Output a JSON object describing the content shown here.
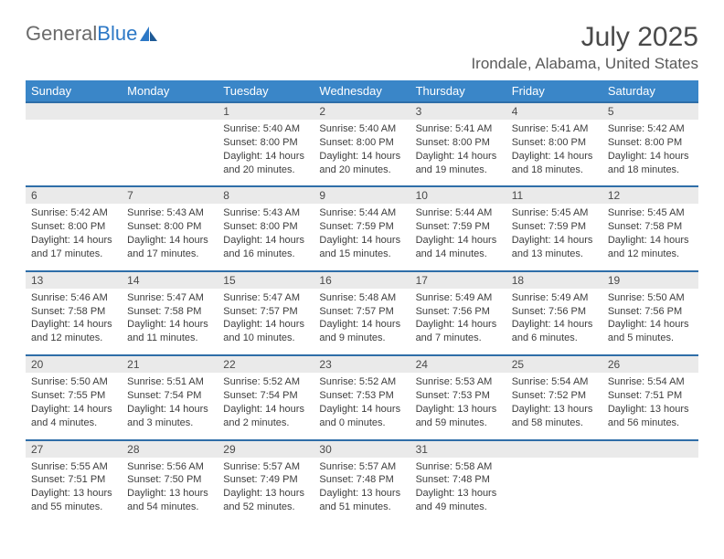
{
  "logo": {
    "part1": "General",
    "part2": "Blue"
  },
  "title": "July 2025",
  "location": "Irondale, Alabama, United States",
  "colors": {
    "header_bg": "#3a86c8",
    "header_text": "#ffffff",
    "num_row_bg": "#eaeaea",
    "num_row_border": "#2f6ea8",
    "body_text": "#3d3d3d",
    "title_text": "#4a4a4a",
    "logo_gray": "#6b6b6b",
    "logo_blue": "#2d78c6"
  },
  "fonts": {
    "title_pt": 30,
    "location_pt": 17,
    "dayhead_pt": 13,
    "daynum_pt": 12,
    "cell_pt": 11
  },
  "day_headers": [
    "Sunday",
    "Monday",
    "Tuesday",
    "Wednesday",
    "Thursday",
    "Friday",
    "Saturday"
  ],
  "weeks": [
    {
      "nums": [
        "",
        "",
        "1",
        "2",
        "3",
        "4",
        "5"
      ],
      "cells": [
        null,
        null,
        {
          "sunrise": "Sunrise: 5:40 AM",
          "sunset": "Sunset: 8:00 PM",
          "day1": "Daylight: 14 hours",
          "day2": "and 20 minutes."
        },
        {
          "sunrise": "Sunrise: 5:40 AM",
          "sunset": "Sunset: 8:00 PM",
          "day1": "Daylight: 14 hours",
          "day2": "and 20 minutes."
        },
        {
          "sunrise": "Sunrise: 5:41 AM",
          "sunset": "Sunset: 8:00 PM",
          "day1": "Daylight: 14 hours",
          "day2": "and 19 minutes."
        },
        {
          "sunrise": "Sunrise: 5:41 AM",
          "sunset": "Sunset: 8:00 PM",
          "day1": "Daylight: 14 hours",
          "day2": "and 18 minutes."
        },
        {
          "sunrise": "Sunrise: 5:42 AM",
          "sunset": "Sunset: 8:00 PM",
          "day1": "Daylight: 14 hours",
          "day2": "and 18 minutes."
        }
      ]
    },
    {
      "nums": [
        "6",
        "7",
        "8",
        "9",
        "10",
        "11",
        "12"
      ],
      "cells": [
        {
          "sunrise": "Sunrise: 5:42 AM",
          "sunset": "Sunset: 8:00 PM",
          "day1": "Daylight: 14 hours",
          "day2": "and 17 minutes."
        },
        {
          "sunrise": "Sunrise: 5:43 AM",
          "sunset": "Sunset: 8:00 PM",
          "day1": "Daylight: 14 hours",
          "day2": "and 17 minutes."
        },
        {
          "sunrise": "Sunrise: 5:43 AM",
          "sunset": "Sunset: 8:00 PM",
          "day1": "Daylight: 14 hours",
          "day2": "and 16 minutes."
        },
        {
          "sunrise": "Sunrise: 5:44 AM",
          "sunset": "Sunset: 7:59 PM",
          "day1": "Daylight: 14 hours",
          "day2": "and 15 minutes."
        },
        {
          "sunrise": "Sunrise: 5:44 AM",
          "sunset": "Sunset: 7:59 PM",
          "day1": "Daylight: 14 hours",
          "day2": "and 14 minutes."
        },
        {
          "sunrise": "Sunrise: 5:45 AM",
          "sunset": "Sunset: 7:59 PM",
          "day1": "Daylight: 14 hours",
          "day2": "and 13 minutes."
        },
        {
          "sunrise": "Sunrise: 5:45 AM",
          "sunset": "Sunset: 7:58 PM",
          "day1": "Daylight: 14 hours",
          "day2": "and 12 minutes."
        }
      ]
    },
    {
      "nums": [
        "13",
        "14",
        "15",
        "16",
        "17",
        "18",
        "19"
      ],
      "cells": [
        {
          "sunrise": "Sunrise: 5:46 AM",
          "sunset": "Sunset: 7:58 PM",
          "day1": "Daylight: 14 hours",
          "day2": "and 12 minutes."
        },
        {
          "sunrise": "Sunrise: 5:47 AM",
          "sunset": "Sunset: 7:58 PM",
          "day1": "Daylight: 14 hours",
          "day2": "and 11 minutes."
        },
        {
          "sunrise": "Sunrise: 5:47 AM",
          "sunset": "Sunset: 7:57 PM",
          "day1": "Daylight: 14 hours",
          "day2": "and 10 minutes."
        },
        {
          "sunrise": "Sunrise: 5:48 AM",
          "sunset": "Sunset: 7:57 PM",
          "day1": "Daylight: 14 hours",
          "day2": "and 9 minutes."
        },
        {
          "sunrise": "Sunrise: 5:49 AM",
          "sunset": "Sunset: 7:56 PM",
          "day1": "Daylight: 14 hours",
          "day2": "and 7 minutes."
        },
        {
          "sunrise": "Sunrise: 5:49 AM",
          "sunset": "Sunset: 7:56 PM",
          "day1": "Daylight: 14 hours",
          "day2": "and 6 minutes."
        },
        {
          "sunrise": "Sunrise: 5:50 AM",
          "sunset": "Sunset: 7:56 PM",
          "day1": "Daylight: 14 hours",
          "day2": "and 5 minutes."
        }
      ]
    },
    {
      "nums": [
        "20",
        "21",
        "22",
        "23",
        "24",
        "25",
        "26"
      ],
      "cells": [
        {
          "sunrise": "Sunrise: 5:50 AM",
          "sunset": "Sunset: 7:55 PM",
          "day1": "Daylight: 14 hours",
          "day2": "and 4 minutes."
        },
        {
          "sunrise": "Sunrise: 5:51 AM",
          "sunset": "Sunset: 7:54 PM",
          "day1": "Daylight: 14 hours",
          "day2": "and 3 minutes."
        },
        {
          "sunrise": "Sunrise: 5:52 AM",
          "sunset": "Sunset: 7:54 PM",
          "day1": "Daylight: 14 hours",
          "day2": "and 2 minutes."
        },
        {
          "sunrise": "Sunrise: 5:52 AM",
          "sunset": "Sunset: 7:53 PM",
          "day1": "Daylight: 14 hours",
          "day2": "and 0 minutes."
        },
        {
          "sunrise": "Sunrise: 5:53 AM",
          "sunset": "Sunset: 7:53 PM",
          "day1": "Daylight: 13 hours",
          "day2": "and 59 minutes."
        },
        {
          "sunrise": "Sunrise: 5:54 AM",
          "sunset": "Sunset: 7:52 PM",
          "day1": "Daylight: 13 hours",
          "day2": "and 58 minutes."
        },
        {
          "sunrise": "Sunrise: 5:54 AM",
          "sunset": "Sunset: 7:51 PM",
          "day1": "Daylight: 13 hours",
          "day2": "and 56 minutes."
        }
      ]
    },
    {
      "nums": [
        "27",
        "28",
        "29",
        "30",
        "31",
        "",
        ""
      ],
      "cells": [
        {
          "sunrise": "Sunrise: 5:55 AM",
          "sunset": "Sunset: 7:51 PM",
          "day1": "Daylight: 13 hours",
          "day2": "and 55 minutes."
        },
        {
          "sunrise": "Sunrise: 5:56 AM",
          "sunset": "Sunset: 7:50 PM",
          "day1": "Daylight: 13 hours",
          "day2": "and 54 minutes."
        },
        {
          "sunrise": "Sunrise: 5:57 AM",
          "sunset": "Sunset: 7:49 PM",
          "day1": "Daylight: 13 hours",
          "day2": "and 52 minutes."
        },
        {
          "sunrise": "Sunrise: 5:57 AM",
          "sunset": "Sunset: 7:48 PM",
          "day1": "Daylight: 13 hours",
          "day2": "and 51 minutes."
        },
        {
          "sunrise": "Sunrise: 5:58 AM",
          "sunset": "Sunset: 7:48 PM",
          "day1": "Daylight: 13 hours",
          "day2": "and 49 minutes."
        },
        null,
        null
      ]
    }
  ]
}
